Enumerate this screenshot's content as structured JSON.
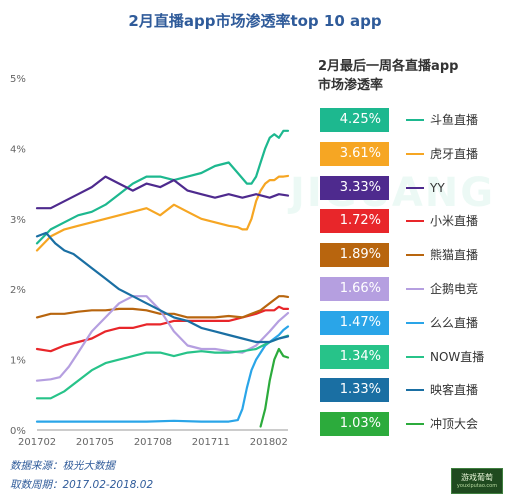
{
  "title": "2月直播app市场渗透率top 10 app",
  "legend_title_line1": "2月最后一周各直播app",
  "legend_title_line2": "市场渗透率",
  "footer_source": "数据来源：极光大数据",
  "footer_period": "取数周期：2017.02-2018.02",
  "logo_text": "游戏葡萄",
  "logo_sub": "youxiputao.com",
  "watermark": "JIGUANG",
  "chart_data": {
    "type": "line",
    "title": "2月直播app市场渗透率top 10 app",
    "xlabel": "",
    "ylabel": "",
    "ylim": [
      0,
      5
    ],
    "y_ticks": [
      "0%",
      "1%",
      "2%",
      "3%",
      "4%",
      "5%"
    ],
    "x_ticks": [
      "201702",
      "201705",
      "201708",
      "201711",
      "201802"
    ],
    "legend_position": "right",
    "series": [
      {
        "name": "斗鱼直播",
        "label": "4.25%",
        "color": "#1db88f",
        "x": [
          0,
          3,
          6,
          9,
          12,
          15,
          18,
          21,
          24,
          27,
          30,
          33,
          36,
          39,
          42,
          44,
          46,
          47,
          48,
          49,
          50,
          51,
          52,
          53,
          54,
          55
        ],
        "y": [
          2.65,
          2.85,
          2.95,
          3.05,
          3.1,
          3.2,
          3.35,
          3.5,
          3.6,
          3.6,
          3.55,
          3.6,
          3.65,
          3.75,
          3.8,
          3.65,
          3.5,
          3.5,
          3.6,
          3.8,
          4.0,
          4.15,
          4.2,
          4.15,
          4.25,
          4.25
        ]
      },
      {
        "name": "虎牙直播",
        "label": "3.61%",
        "color": "#f6a623",
        "x": [
          0,
          3,
          6,
          9,
          12,
          15,
          18,
          21,
          24,
          27,
          30,
          33,
          36,
          39,
          42,
          44,
          45,
          46,
          47,
          48,
          49,
          50,
          51,
          52,
          53,
          54,
          55
        ],
        "y": [
          2.55,
          2.75,
          2.85,
          2.9,
          2.95,
          3.0,
          3.05,
          3.1,
          3.15,
          3.05,
          3.2,
          3.1,
          3.0,
          2.95,
          2.9,
          2.88,
          2.85,
          2.85,
          3.0,
          3.25,
          3.4,
          3.5,
          3.55,
          3.55,
          3.6,
          3.6,
          3.61
        ]
      },
      {
        "name": "YY",
        "label": "3.33%",
        "color": "#4e2a8e",
        "x": [
          0,
          3,
          6,
          9,
          12,
          15,
          18,
          21,
          24,
          27,
          30,
          33,
          36,
          39,
          42,
          45,
          48,
          51,
          53,
          55
        ],
        "y": [
          3.15,
          3.15,
          3.25,
          3.35,
          3.45,
          3.6,
          3.5,
          3.4,
          3.5,
          3.45,
          3.55,
          3.4,
          3.35,
          3.3,
          3.35,
          3.3,
          3.35,
          3.3,
          3.35,
          3.33
        ]
      },
      {
        "name": "小米直播",
        "label": "1.72%",
        "color": "#e8262a",
        "x": [
          0,
          3,
          6,
          9,
          12,
          15,
          18,
          21,
          24,
          27,
          30,
          33,
          36,
          39,
          42,
          45,
          48,
          50,
          52,
          53,
          54,
          55
        ],
        "y": [
          1.15,
          1.12,
          1.2,
          1.25,
          1.3,
          1.4,
          1.45,
          1.45,
          1.5,
          1.5,
          1.55,
          1.55,
          1.55,
          1.55,
          1.55,
          1.6,
          1.65,
          1.7,
          1.7,
          1.75,
          1.72,
          1.72
        ]
      },
      {
        "name": "熊猫直播",
        "label": "1.89%",
        "color": "#b8650e",
        "x": [
          0,
          3,
          6,
          9,
          12,
          15,
          18,
          21,
          24,
          27,
          30,
          33,
          36,
          39,
          42,
          45,
          47,
          49,
          51,
          53,
          54,
          55
        ],
        "y": [
          1.6,
          1.65,
          1.65,
          1.68,
          1.7,
          1.7,
          1.72,
          1.72,
          1.7,
          1.65,
          1.65,
          1.6,
          1.6,
          1.6,
          1.62,
          1.6,
          1.65,
          1.7,
          1.8,
          1.9,
          1.9,
          1.89
        ]
      },
      {
        "name": "企鹅电竞",
        "label": "1.66%",
        "color": "#b59fe0",
        "x": [
          0,
          3,
          5,
          7,
          9,
          12,
          15,
          18,
          21,
          24,
          27,
          30,
          33,
          36,
          39,
          42,
          45,
          48,
          51,
          53,
          55
        ],
        "y": [
          0.7,
          0.72,
          0.75,
          0.9,
          1.1,
          1.4,
          1.6,
          1.8,
          1.9,
          1.9,
          1.7,
          1.4,
          1.2,
          1.15,
          1.15,
          1.12,
          1.1,
          1.2,
          1.4,
          1.55,
          1.66
        ]
      },
      {
        "name": "么么直播",
        "label": "1.47%",
        "color": "#2aa5e8",
        "x": [
          0,
          6,
          12,
          18,
          24,
          30,
          36,
          42,
          44,
          45,
          46,
          47,
          48,
          49,
          50,
          51,
          52,
          53,
          54,
          55
        ],
        "y": [
          0.12,
          0.12,
          0.12,
          0.12,
          0.12,
          0.13,
          0.12,
          0.12,
          0.14,
          0.3,
          0.6,
          0.85,
          1.0,
          1.1,
          1.2,
          1.25,
          1.3,
          1.35,
          1.42,
          1.47
        ]
      },
      {
        "name": "NOW直播",
        "label": "1.34%",
        "color": "#27c389",
        "x": [
          0,
          3,
          6,
          9,
          12,
          15,
          18,
          21,
          24,
          27,
          30,
          33,
          36,
          39,
          42,
          45,
          48,
          51,
          53,
          55
        ],
        "y": [
          0.45,
          0.45,
          0.55,
          0.7,
          0.85,
          0.95,
          1.0,
          1.05,
          1.1,
          1.1,
          1.05,
          1.1,
          1.12,
          1.1,
          1.1,
          1.12,
          1.15,
          1.25,
          1.3,
          1.34
        ]
      },
      {
        "name": "映客直播",
        "label": "1.33%",
        "color": "#1a6fa3",
        "x": [
          0,
          2,
          4,
          6,
          8,
          10,
          12,
          15,
          18,
          21,
          24,
          27,
          30,
          33,
          36,
          39,
          42,
          45,
          48,
          51,
          53,
          55
        ],
        "y": [
          2.75,
          2.8,
          2.65,
          2.55,
          2.5,
          2.4,
          2.3,
          2.15,
          2.0,
          1.9,
          1.8,
          1.7,
          1.6,
          1.55,
          1.45,
          1.4,
          1.35,
          1.3,
          1.25,
          1.25,
          1.3,
          1.33
        ]
      },
      {
        "name": "冲顶大会",
        "label": "1.03%",
        "color": "#2cab3c",
        "x": [
          49,
          50,
          51,
          52,
          53,
          54,
          55
        ],
        "y": [
          0.05,
          0.3,
          0.7,
          1.0,
          1.15,
          1.05,
          1.03
        ]
      }
    ]
  }
}
